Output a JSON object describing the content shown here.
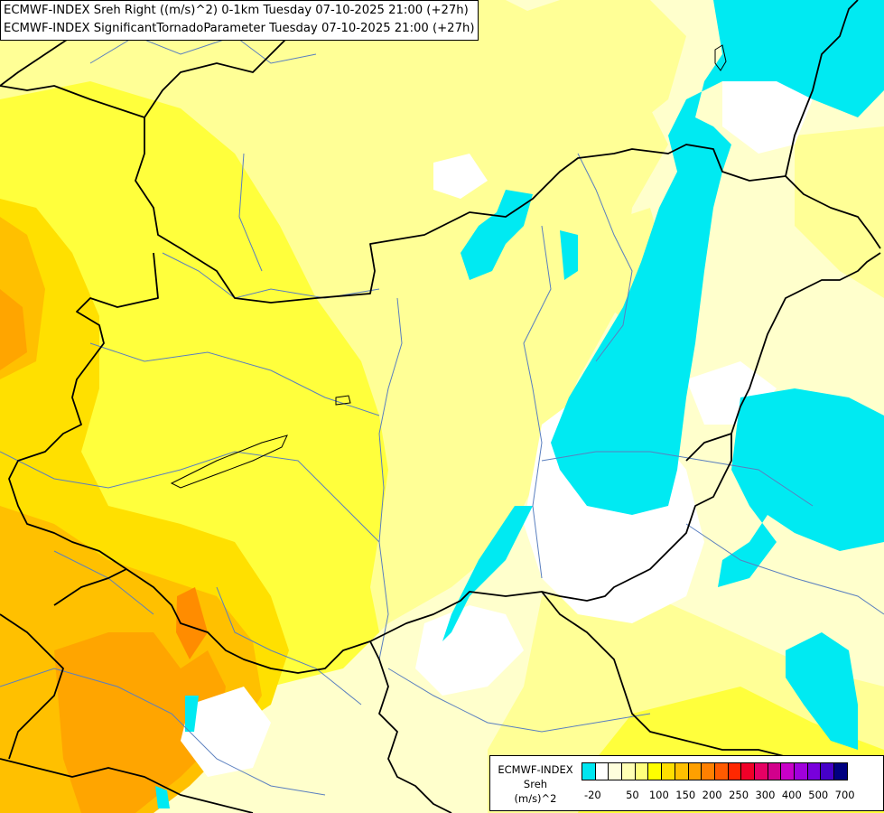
{
  "title": {
    "line1": "ECMWF-INDEX Sreh Right ((m/s)^2) 0-1km Tuesday 07-10-2025 21:00 (+27h)",
    "line2": "ECMWF-INDEX SignificantTornadoParameter Tuesday 07-10-2025 21:00 (+27h)"
  },
  "legend": {
    "line1": "ECMWF-INDEX",
    "line2": "Sreh",
    "line3": "(m/s)^2",
    "colors": [
      "#00e6f0",
      "#ffffff",
      "#ffffdc",
      "#ffffb4",
      "#ffff7d",
      "#ffff00",
      "#ffde00",
      "#ffc000",
      "#ffa000",
      "#ff8000",
      "#ff5a00",
      "#ff2800",
      "#f00028",
      "#e60064",
      "#d2008c",
      "#c800c8",
      "#a000dc",
      "#7800dc",
      "#4600c8",
      "#000080"
    ],
    "ticks": [
      "-20",
      "50",
      "100",
      "150",
      "200",
      "250",
      "300",
      "400",
      "500",
      "700"
    ]
  },
  "palette": {
    "cyan": "#00eaf2",
    "white": "#ffffff",
    "pale_cream": "#ffffcc",
    "light_yellow": "#ffff96",
    "yellow": "#ffff3c",
    "gold": "#ffe000",
    "orange_gold": "#ffc000",
    "orange": "#ffa500",
    "dark_orange": "#ff8c00",
    "rivers": "#5a7fbf",
    "borders": "#000000"
  }
}
